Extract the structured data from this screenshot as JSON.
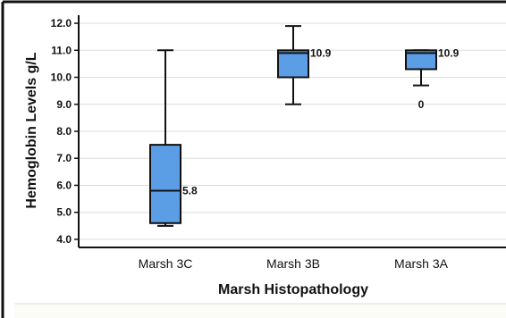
{
  "chart_data": {
    "type": "box",
    "xlabel": "Marsh Histopathology",
    "ylabel": "Hemoglobin Levels g/L",
    "ylim": [
      3.7,
      12.3
    ],
    "yticks": [
      4.0,
      5.0,
      6.0,
      7.0,
      8.0,
      9.0,
      10.0,
      11.0,
      12.0
    ],
    "ytick_labels": [
      "4.0",
      "5.0",
      "6.0",
      "7.0",
      "8.0",
      "9.0",
      "10.0",
      "11.0",
      "12.0"
    ],
    "grid": true,
    "categories": [
      "Marsh 3C",
      "Marsh 3B",
      "Marsh 3A"
    ],
    "boxes": [
      {
        "category": "Marsh 3C",
        "whisker_low": 4.5,
        "q1": 4.6,
        "median": 5.8,
        "q3": 7.5,
        "whisker_high": 11.0,
        "median_label": "5.8",
        "outliers": []
      },
      {
        "category": "Marsh 3B",
        "whisker_low": 9.0,
        "q1": 10.0,
        "median": 10.9,
        "q3": 11.0,
        "whisker_high": 11.9,
        "median_label": "10.9",
        "outliers": []
      },
      {
        "category": "Marsh 3A",
        "whisker_low": 9.7,
        "q1": 10.3,
        "median": 10.9,
        "q3": 11.0,
        "whisker_high": 11.0,
        "median_label": "10.9",
        "outliers": [
          {
            "value": 9.0,
            "label": "0"
          }
        ]
      }
    ],
    "colors": {
      "box_fill": "#5b9ee6",
      "stroke": "#111111",
      "grid": "#dddddd",
      "frame": "#111111",
      "footer_fill": "#fbfcf5"
    }
  }
}
